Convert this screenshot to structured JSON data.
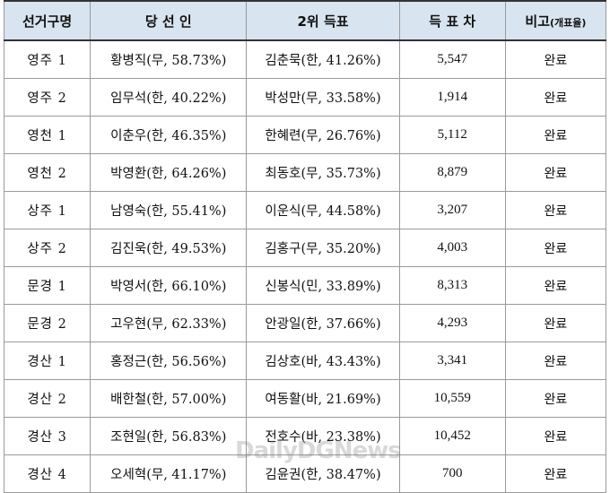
{
  "table": {
    "headers": {
      "district": "선거구명",
      "winner": "당 선 인",
      "runner_up": "2위 득표",
      "margin": "득 표 차",
      "note": "비고",
      "note_sub": "(개표율)"
    },
    "rows": [
      {
        "district": "영주 1",
        "winner": "황병직(무, 58.73%)",
        "runner_up": "김춘묵(한, 41.26%)",
        "margin": "5,547",
        "status": "완료"
      },
      {
        "district": "영주 2",
        "winner": "임무석(한, 40.22%)",
        "runner_up": "박성만(무, 33.58%)",
        "margin": "1,914",
        "status": "완료"
      },
      {
        "district": "영천 1",
        "winner": "이춘우(한, 46.35%)",
        "runner_up": "한혜련(무, 26.76%)",
        "margin": "5,112",
        "status": "완료"
      },
      {
        "district": "영천 2",
        "winner": "박영환(한, 64.26%)",
        "runner_up": "최동호(무, 35.73%)",
        "margin": "8,879",
        "status": "완료"
      },
      {
        "district": "상주 1",
        "winner": "남영숙(한, 55.41%)",
        "runner_up": "이운식(무, 44.58%)",
        "margin": "3,207",
        "status": "완료"
      },
      {
        "district": "상주 2",
        "winner": "김진욱(한, 49.53%)",
        "runner_up": "김홍구(무, 35.20%)",
        "margin": "4,003",
        "status": "완료"
      },
      {
        "district": "문경 1",
        "winner": "박영서(한, 66.10%)",
        "runner_up": "신봉식(민, 33.89%)",
        "margin": "8,313",
        "status": "완료"
      },
      {
        "district": "문경 2",
        "winner": "고우현(무, 62.33%)",
        "runner_up": "안광일(한, 37.66%)",
        "margin": "4,293",
        "status": "완료"
      },
      {
        "district": "경산 1",
        "winner": "홍정근(한, 56.56%)",
        "runner_up": "김상호(바, 43.43%)",
        "margin": "3,341",
        "status": "완료"
      },
      {
        "district": "경산 2",
        "winner": "배한철(한, 57.00%)",
        "runner_up": "여동활(바, 21.69%)",
        "margin": "10,559",
        "status": "완료"
      },
      {
        "district": "경산 3",
        "winner": "조현일(한, 56.83%)",
        "runner_up": "전호수(바, 23.38%)",
        "margin": "10,452",
        "status": "완료"
      },
      {
        "district": "경산 4",
        "winner": "오세혁(무, 41.17%)",
        "runner_up": "김윤권(한, 38.47%)",
        "margin": "700",
        "status": "완료"
      }
    ]
  },
  "watermark": "DailyDGNews"
}
